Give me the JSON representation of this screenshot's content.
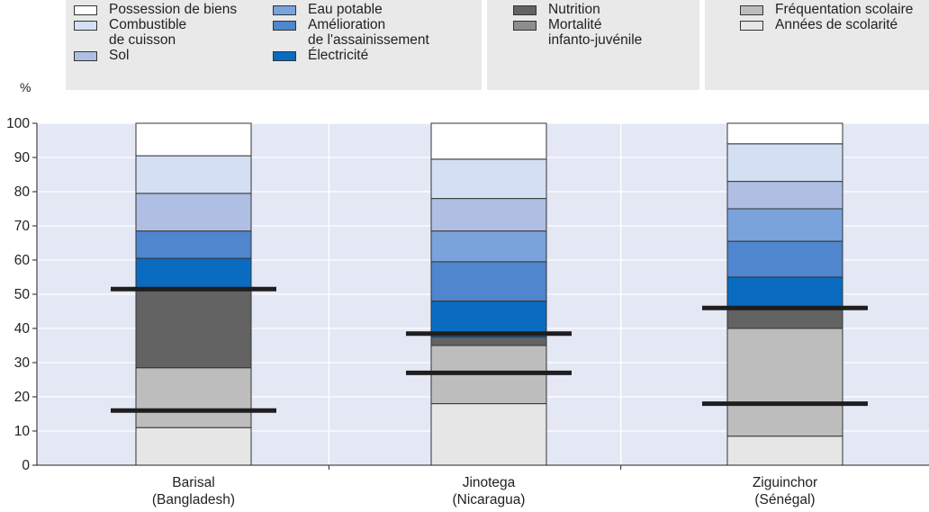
{
  "unit_label": "%",
  "colors": {
    "plot_bg": "#e4e8f5",
    "legend_bg": "#e9e9e9",
    "grid": "#ffffff",
    "axis": "#222222",
    "threshold": "#1e1e1e"
  },
  "legend_groups": [
    {
      "items": [
        {
          "label": "Possession de biens",
          "color": "#ffffff"
        },
        {
          "label": "Combustible\nde cuisson",
          "color": "#d3e0f4"
        },
        {
          "label": "Sol",
          "color": "#aebfe3"
        },
        {
          "label": "Eau potable",
          "color": "#7aa3dc"
        },
        {
          "label": "Amélioration\nde l'assainissement",
          "color": "#4f86cd"
        },
        {
          "label": "Électricité",
          "color": "#0a6cc0"
        }
      ]
    },
    {
      "items": [
        {
          "label": "Nutrition",
          "color": "#636363"
        },
        {
          "label": "Mortalité\ninfanto-juvénile",
          "color": "#8d8d8d"
        }
      ]
    },
    {
      "items": [
        {
          "label": "Fréquentation scolaire",
          "color": "#bdbdbd"
        },
        {
          "label": "Années de scolarité",
          "color": "#e6e6e6"
        }
      ]
    }
  ],
  "chart_data": {
    "type": "bar",
    "stacked": true,
    "ylabel": "%",
    "ylim": [
      0,
      100
    ],
    "yticks": [
      0,
      10,
      20,
      30,
      40,
      50,
      60,
      70,
      80,
      90,
      100
    ],
    "grid": true,
    "categories": [
      "Barisal\n(Bangladesh)",
      "Jinotega\n(Nicaragua)",
      "Ziguinchor\n(Sénégal)"
    ],
    "series": [
      {
        "name": "Années de scolarité",
        "color": "#e6e6e6",
        "values": [
          11,
          18,
          8.5
        ]
      },
      {
        "name": "Fréquentation scolaire",
        "color": "#bdbdbd",
        "values": [
          17.5,
          17,
          31.5
        ]
      },
      {
        "name": "Mortalité infanto-juvénile",
        "color": "#8d8d8d",
        "values": [
          0,
          0,
          0
        ]
      },
      {
        "name": "Nutrition",
        "color": "#636363",
        "values": [
          22.5,
          2.5,
          5.5
        ]
      },
      {
        "name": "Électricité",
        "color": "#0a6cc0",
        "values": [
          9.5,
          10.5,
          9.5
        ]
      },
      {
        "name": "Amélioration de l'assainissement",
        "color": "#4f86cd",
        "values": [
          8,
          11.5,
          10.5
        ]
      },
      {
        "name": "Eau potable",
        "color": "#7aa3dc",
        "values": [
          0,
          9,
          9.5
        ]
      },
      {
        "name": "Sol",
        "color": "#aebfe3",
        "values": [
          11,
          9.5,
          8
        ]
      },
      {
        "name": "Combustible de cuisson",
        "color": "#d3e0f4",
        "values": [
          11,
          11.5,
          11
        ]
      },
      {
        "name": "Possession de biens",
        "color": "#ffffff",
        "values": [
          9.5,
          10.5,
          6
        ]
      }
    ],
    "thresholds": [
      {
        "category": 0,
        "values": [
          16,
          51.5
        ]
      },
      {
        "category": 1,
        "values": [
          27,
          38.5
        ]
      },
      {
        "category": 2,
        "values": [
          18,
          46
        ]
      }
    ]
  }
}
